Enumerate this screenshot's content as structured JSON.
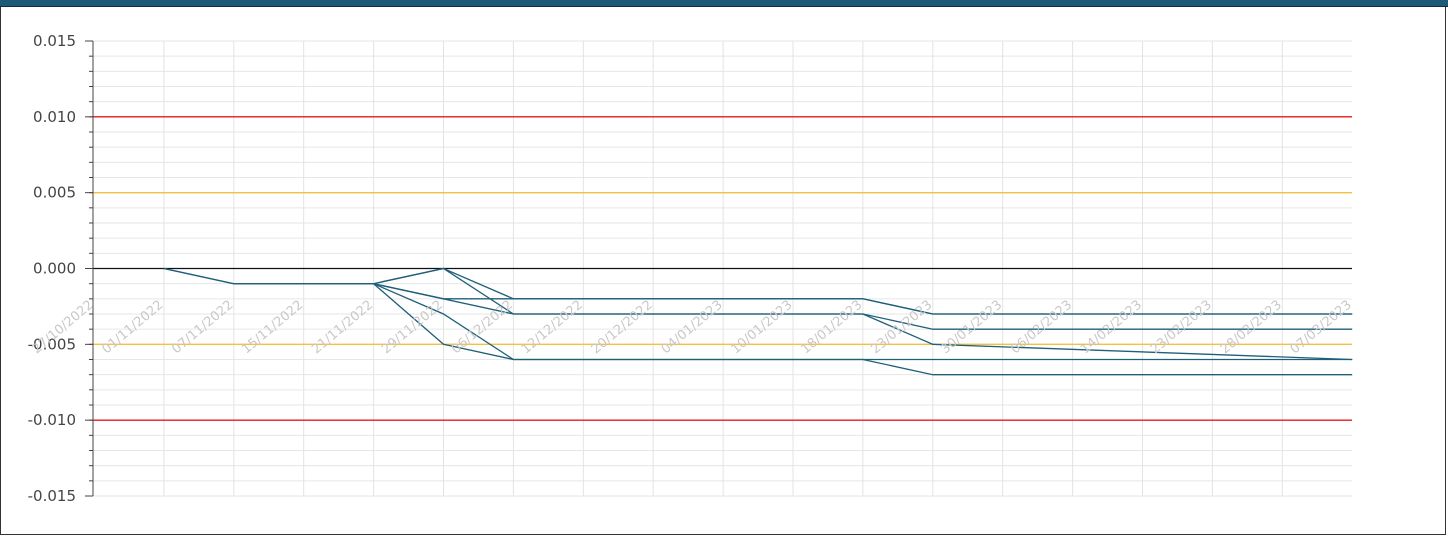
{
  "chart_data": {
    "type": "line",
    "title": "",
    "xlabel": "",
    "ylabel": "",
    "ylim": [
      -0.015,
      0.015
    ],
    "yticks": [
      "0.015",
      "0.010",
      "0.005",
      "0.000",
      "-0.005",
      "-0.010",
      "-0.015"
    ],
    "yticks_values": [
      0.015,
      0.01,
      0.005,
      0.0,
      -0.005,
      -0.01,
      -0.015
    ],
    "xticks": [
      "27/10/2022",
      "01/11/2022",
      "07/11/2022",
      "15/11/2022",
      "21/11/2022",
      "29/11/2022",
      "06/12/2022",
      "12/12/2022",
      "20/12/2022",
      "04/01/2023",
      "10/01/2023",
      "18/01/2023",
      "23/01/2023",
      "30/01/2023",
      "06/02/2023",
      "14/02/2023",
      "23/02/2023",
      "28/02/2023",
      "07/03/2023"
    ],
    "grid": true,
    "reference_lines": [
      {
        "value": 0.01,
        "color": "#e8191c"
      },
      {
        "value": -0.01,
        "color": "#e8191c"
      },
      {
        "value": 0.005,
        "color": "#f5c040"
      },
      {
        "value": -0.005,
        "color": "#f5c040"
      },
      {
        "value": 0.0,
        "color": "#111111"
      }
    ],
    "series_color": "#1f5f79",
    "series": [
      {
        "x": [
          1,
          2,
          4,
          5,
          6,
          11,
          12,
          18
        ],
        "values": [
          0.0,
          -0.001,
          -0.001,
          0.0,
          -0.002,
          -0.002,
          -0.003,
          -0.003
        ]
      },
      {
        "x": [
          1,
          2,
          4,
          5,
          6,
          11,
          12,
          18
        ],
        "values": [
          0.0,
          -0.001,
          -0.001,
          0.0,
          -0.003,
          -0.003,
          -0.004,
          -0.004
        ]
      },
      {
        "x": [
          4,
          5,
          6,
          11,
          12,
          18
        ],
        "values": [
          -0.001,
          -0.002,
          -0.002,
          -0.002,
          -0.003,
          -0.003
        ]
      },
      {
        "x": [
          4,
          5,
          6,
          11,
          12,
          18
        ],
        "values": [
          -0.001,
          -0.005,
          -0.006,
          -0.006,
          -0.006,
          -0.006
        ]
      },
      {
        "x": [
          4,
          5,
          6,
          11,
          12,
          18
        ],
        "values": [
          -0.001,
          -0.003,
          -0.006,
          -0.006,
          -0.007,
          -0.007
        ]
      },
      {
        "x": [
          4,
          6,
          11,
          12,
          18
        ],
        "values": [
          -0.001,
          -0.003,
          -0.003,
          -0.005,
          -0.006
        ]
      }
    ]
  }
}
